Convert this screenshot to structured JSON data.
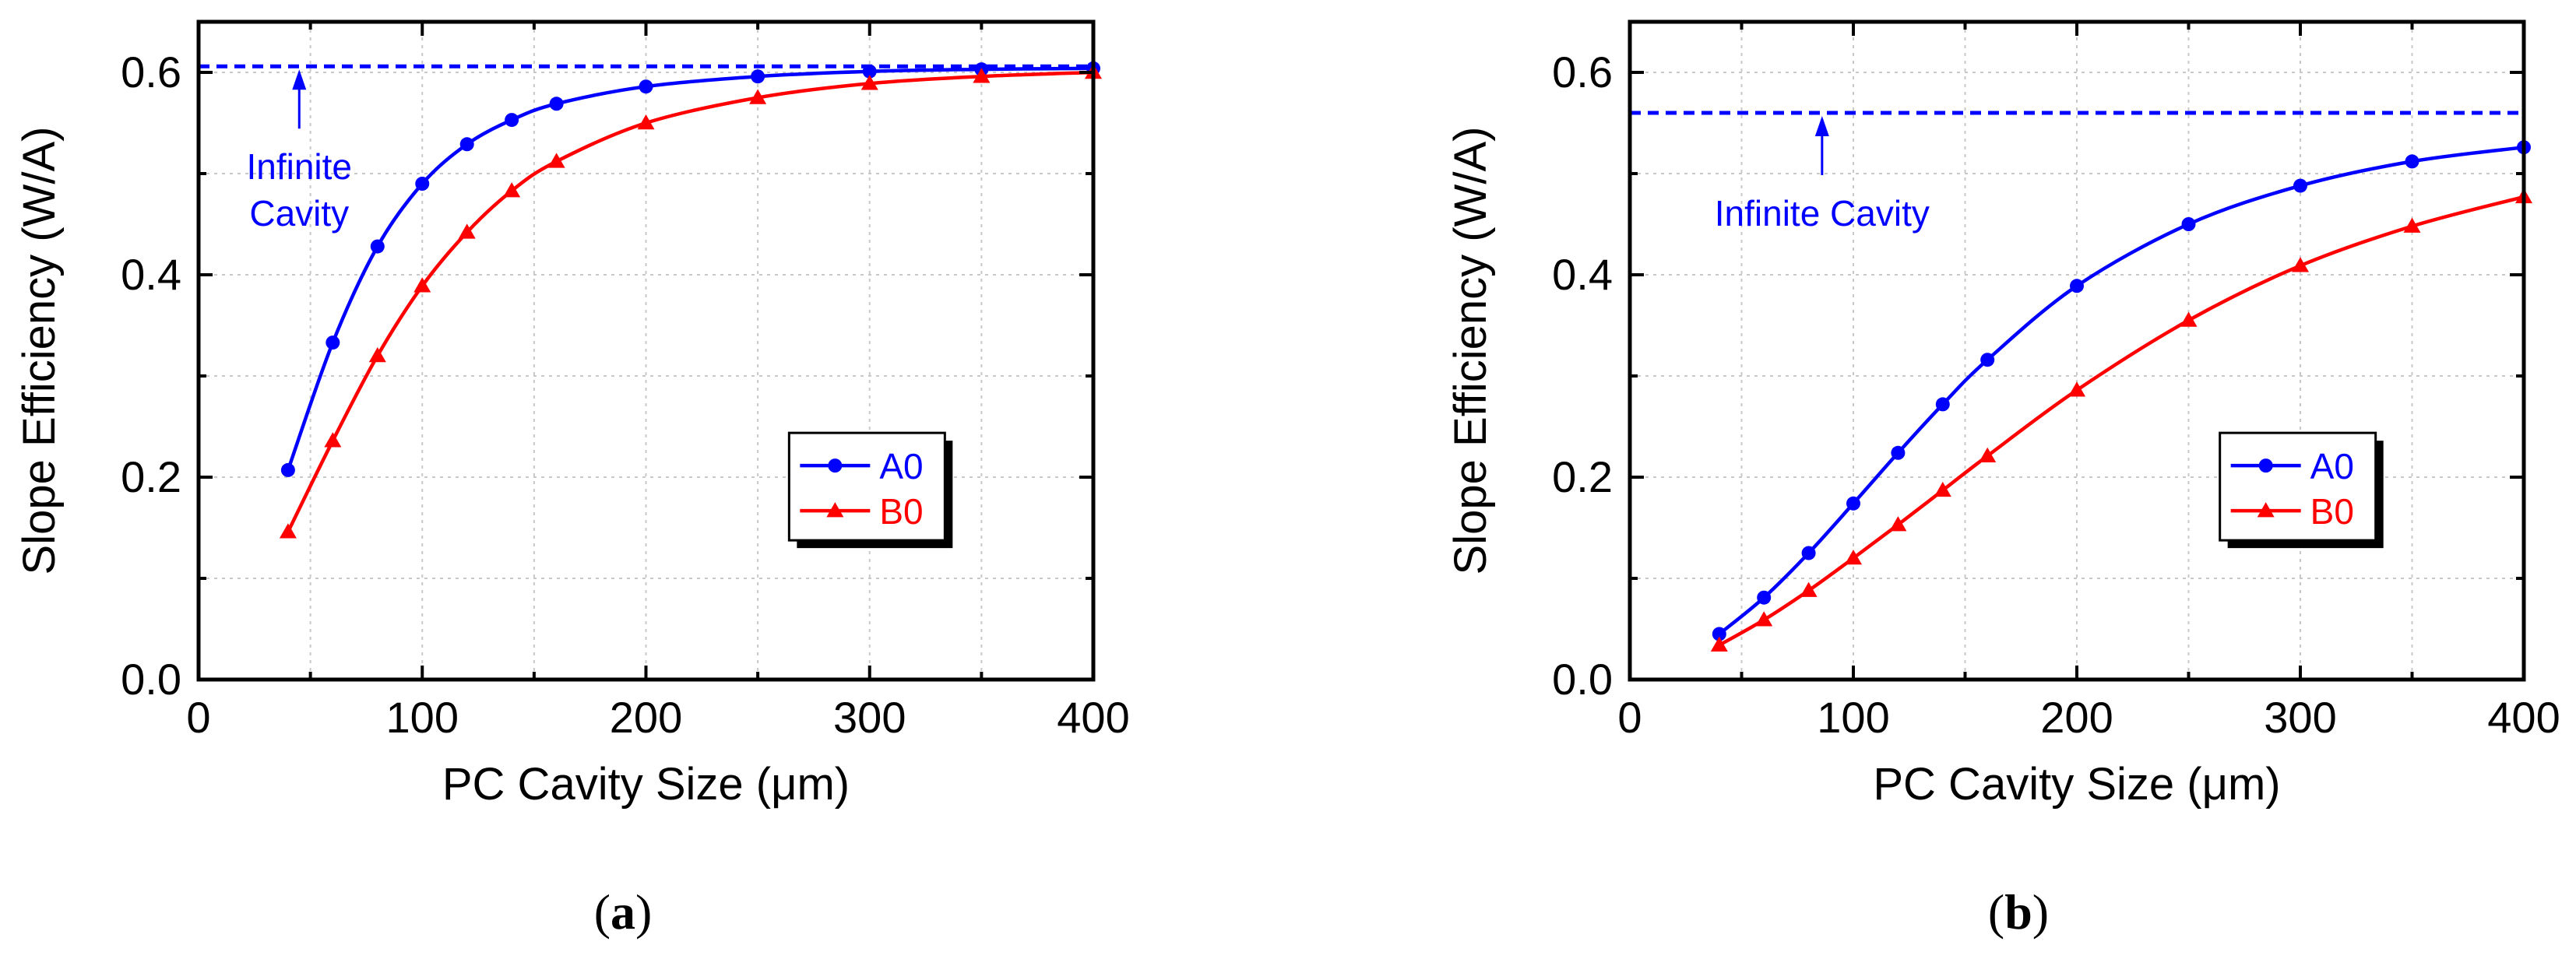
{
  "colors": {
    "A0": "#0000ff",
    "B0": "#ff0000",
    "axis": "#000000",
    "grid": "#c8c8c8",
    "annotation": "#0000ff"
  },
  "chart_data": [
    {
      "panel": "a",
      "caption": "a",
      "type": "line",
      "xlabel": "PC Cavity Size (μm)",
      "ylabel": "Slope Efficiency (W/A)",
      "xlim": [
        0,
        400
      ],
      "ylim": [
        0,
        0.65
      ],
      "xticks": [
        0,
        100,
        200,
        300,
        400
      ],
      "yticks": [
        0.0,
        0.2,
        0.4,
        0.6
      ],
      "xtick_labels": [
        "0",
        "100",
        "200",
        "300",
        "400"
      ],
      "ytick_labels": [
        "0.0",
        "0.2",
        "0.4",
        "0.6"
      ],
      "grid": true,
      "reference_line": {
        "y": 0.606,
        "label_lines": [
          "Infinite",
          "Cavity"
        ],
        "arrow_x": 45
      },
      "legend": {
        "placement": "center-right"
      },
      "series": [
        {
          "name": "A0",
          "marker": "circle",
          "x": [
            40,
            60,
            80,
            100,
            120,
            140,
            160,
            200,
            250,
            300,
            350,
            400
          ],
          "values": [
            0.207,
            0.333,
            0.428,
            0.49,
            0.529,
            0.553,
            0.569,
            0.586,
            0.596,
            0.601,
            0.603,
            0.604
          ]
        },
        {
          "name": "B0",
          "marker": "triangle",
          "x": [
            40,
            60,
            80,
            100,
            120,
            140,
            160,
            200,
            250,
            300,
            350,
            400
          ],
          "values": [
            0.146,
            0.236,
            0.32,
            0.389,
            0.442,
            0.483,
            0.512,
            0.55,
            0.575,
            0.589,
            0.596,
            0.6
          ]
        }
      ]
    },
    {
      "panel": "b",
      "caption": "b",
      "type": "line",
      "xlabel": "PC Cavity Size (μm)",
      "ylabel": "Slope Efficiency (W/A)",
      "xlim": [
        0,
        400
      ],
      "ylim": [
        0,
        0.65
      ],
      "xticks": [
        0,
        100,
        200,
        300,
        400
      ],
      "yticks": [
        0.0,
        0.2,
        0.4,
        0.6
      ],
      "xtick_labels": [
        "0",
        "100",
        "200",
        "300",
        "400"
      ],
      "ytick_labels": [
        "0.0",
        "0.2",
        "0.4",
        "0.6"
      ],
      "grid": true,
      "reference_line": {
        "y": 0.56,
        "label_lines": [
          "Infinite Cavity"
        ],
        "arrow_x": 86
      },
      "legend": {
        "placement": "center-right"
      },
      "series": [
        {
          "name": "A0",
          "marker": "circle",
          "x": [
            40,
            60,
            80,
            100,
            120,
            140,
            160,
            200,
            250,
            300,
            350,
            400
          ],
          "values": [
            0.045,
            0.081,
            0.125,
            0.174,
            0.224,
            0.272,
            0.316,
            0.389,
            0.45,
            0.488,
            0.512,
            0.526
          ]
        },
        {
          "name": "B0",
          "marker": "triangle",
          "x": [
            40,
            60,
            80,
            100,
            120,
            140,
            160,
            200,
            250,
            300,
            350,
            400
          ],
          "values": [
            0.034,
            0.059,
            0.088,
            0.12,
            0.153,
            0.187,
            0.221,
            0.286,
            0.355,
            0.409,
            0.448,
            0.477
          ]
        }
      ]
    }
  ]
}
